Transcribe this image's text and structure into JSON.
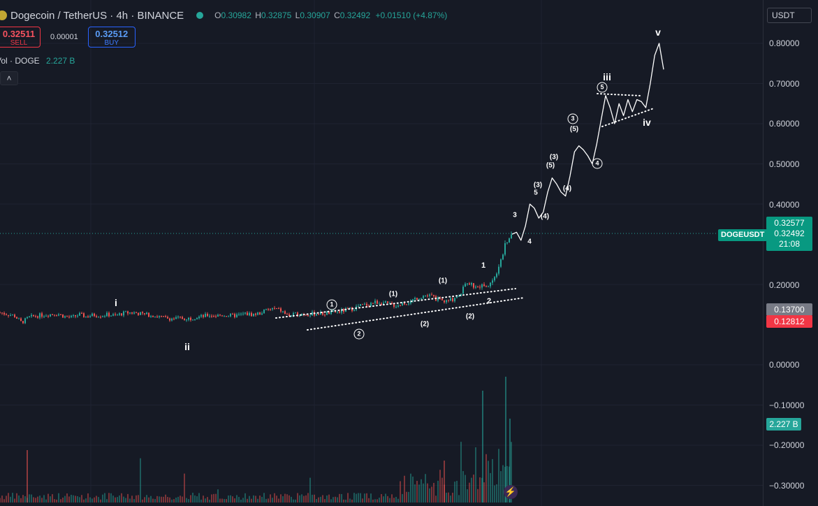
{
  "header": {
    "symbol_title": "Dogecoin / TetherUS · 4h · BINANCE",
    "o_label": "O",
    "o_value": "0.30982",
    "h_label": "H",
    "h_value": "0.32875",
    "l_label": "L",
    "l_value": "0.30907",
    "c_label": "C",
    "c_value": "0.32492",
    "change": "+0.01510 (+4.87%)"
  },
  "trade": {
    "sell_price": "0.32511",
    "sell_label": "SELL",
    "spread": "0.00001",
    "buy_price": "0.32512",
    "buy_label": "BUY"
  },
  "volume_legend": {
    "label": "Vol · DOGE",
    "value": "2.227 B"
  },
  "collapse_icon": "chevron-up-icon",
  "currency_select": "USDT",
  "price_axis": {
    "ticks": [
      "0.80000",
      "0.70000",
      "0.60000",
      "0.50000",
      "0.40000",
      "0.20000",
      "0.00000",
      "−0.10000",
      "−0.20000",
      "−0.30000"
    ],
    "tags": {
      "last_price": "0.32577",
      "close_price": "0.32492",
      "countdown": "21:08",
      "level_gray": "0.13700",
      "level_red": "0.12812",
      "volume": "2.227 B"
    }
  },
  "symbol_tag": "DOGEUSDT",
  "wave_labels": {
    "i": "i",
    "ii": "ii",
    "iii": "iii",
    "iv": "iv",
    "v": "v",
    "c1": "1",
    "c2": "2",
    "c3": "3",
    "c4": "4",
    "c5": "5",
    "p1a": "(1)",
    "p1b": "(1)",
    "p2a": "(2)",
    "p2b": "(2)",
    "p3a": "(3)",
    "p3b": "(3)",
    "p5a": "(5)",
    "p5b": "(5)",
    "p4a": "(4)",
    "p4b": "(4)",
    "n1": "1",
    "n2": "2",
    "n3": "3",
    "n4": "4",
    "n5": "5"
  },
  "colors": {
    "background": "#161a25",
    "up": "#26a69a",
    "down": "#ef5350",
    "accent_green": "#089981",
    "buy_blue": "#2962ff",
    "sell_red": "#f23645"
  },
  "chart_data": {
    "type": "candlestick",
    "symbol": "DOGEUSDT",
    "timeframe": "4h",
    "ylim": [
      -0.32,
      0.86
    ],
    "y_ticks": [
      0.8,
      0.7,
      0.6,
      0.5,
      0.4,
      0.2,
      0.0,
      -0.1,
      -0.2,
      -0.3
    ],
    "last_close": 0.32492,
    "levels": [
      0.32577,
      0.137,
      0.12812
    ],
    "price_path": [
      0.13,
      0.126,
      0.122,
      0.105,
      0.118,
      0.122,
      0.124,
      0.126,
      0.127,
      0.12,
      0.118,
      0.125,
      0.12,
      0.124,
      0.123,
      0.125,
      0.122,
      0.128,
      0.13,
      0.129,
      0.125,
      0.124,
      0.12,
      0.116,
      0.115,
      0.116,
      0.115,
      0.118,
      0.12,
      0.124,
      0.122,
      0.124,
      0.122,
      0.123,
      0.127,
      0.125,
      0.128,
      0.136,
      0.14,
      0.135,
      0.122,
      0.125,
      0.127,
      0.126,
      0.128,
      0.127,
      0.13,
      0.132,
      0.136,
      0.14,
      0.147,
      0.15,
      0.156,
      0.155,
      0.15,
      0.148,
      0.152,
      0.158,
      0.168,
      0.173,
      0.17,
      0.16,
      0.157,
      0.165,
      0.18,
      0.21,
      0.19,
      0.195,
      0.2,
      0.23,
      0.29,
      0.325
    ],
    "projection": [
      0.325,
      0.33,
      0.31,
      0.345,
      0.4,
      0.39,
      0.365,
      0.38,
      0.43,
      0.465,
      0.45,
      0.43,
      0.42,
      0.47,
      0.53,
      0.545,
      0.535,
      0.52,
      0.5,
      0.55,
      0.61,
      0.67,
      0.64,
      0.6,
      0.65,
      0.62,
      0.66,
      0.63,
      0.66,
      0.655,
      0.64,
      0.7,
      0.77,
      0.8,
      0.735
    ],
    "volume": "2.227 B"
  }
}
